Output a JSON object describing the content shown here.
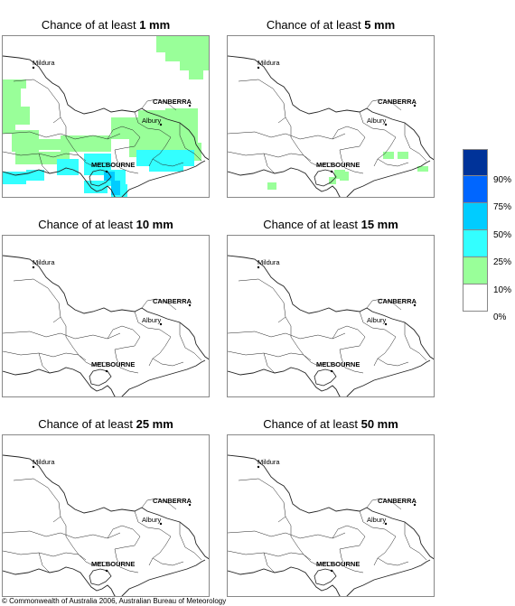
{
  "panels": [
    {
      "prefix": "Chance of at least ",
      "amount": "1 mm"
    },
    {
      "prefix": "Chance of at least ",
      "amount": "5 mm"
    },
    {
      "prefix": "Chance of at least ",
      "amount": "10 mm"
    },
    {
      "prefix": "Chance of at least ",
      "amount": "15 mm"
    },
    {
      "prefix": "Chance of at least ",
      "amount": "25 mm"
    },
    {
      "prefix": "Chance of at least ",
      "amount": "50 mm"
    }
  ],
  "places": {
    "mildura": "Mildura",
    "canberra": "CANBERRA",
    "albury": "Albury",
    "melbourne": "MELBOURNE"
  },
  "legend": {
    "bands": [
      {
        "range": "90%+",
        "color": "#003399"
      },
      {
        "range": "75-90%",
        "color": "#0066ff"
      },
      {
        "range": "50-75%",
        "color": "#00ccff"
      },
      {
        "range": "25-50%",
        "color": "#33ffff"
      },
      {
        "range": "10-25%",
        "color": "#99ff99"
      },
      {
        "range": "0-10%",
        "color": "#ffffff"
      }
    ],
    "labels": [
      "90%",
      "75%",
      "50%",
      "25%",
      "10%",
      "0%"
    ]
  },
  "copyright": "© Commonwealth of Australia 2006, Australian Bureau of Meteorology"
}
